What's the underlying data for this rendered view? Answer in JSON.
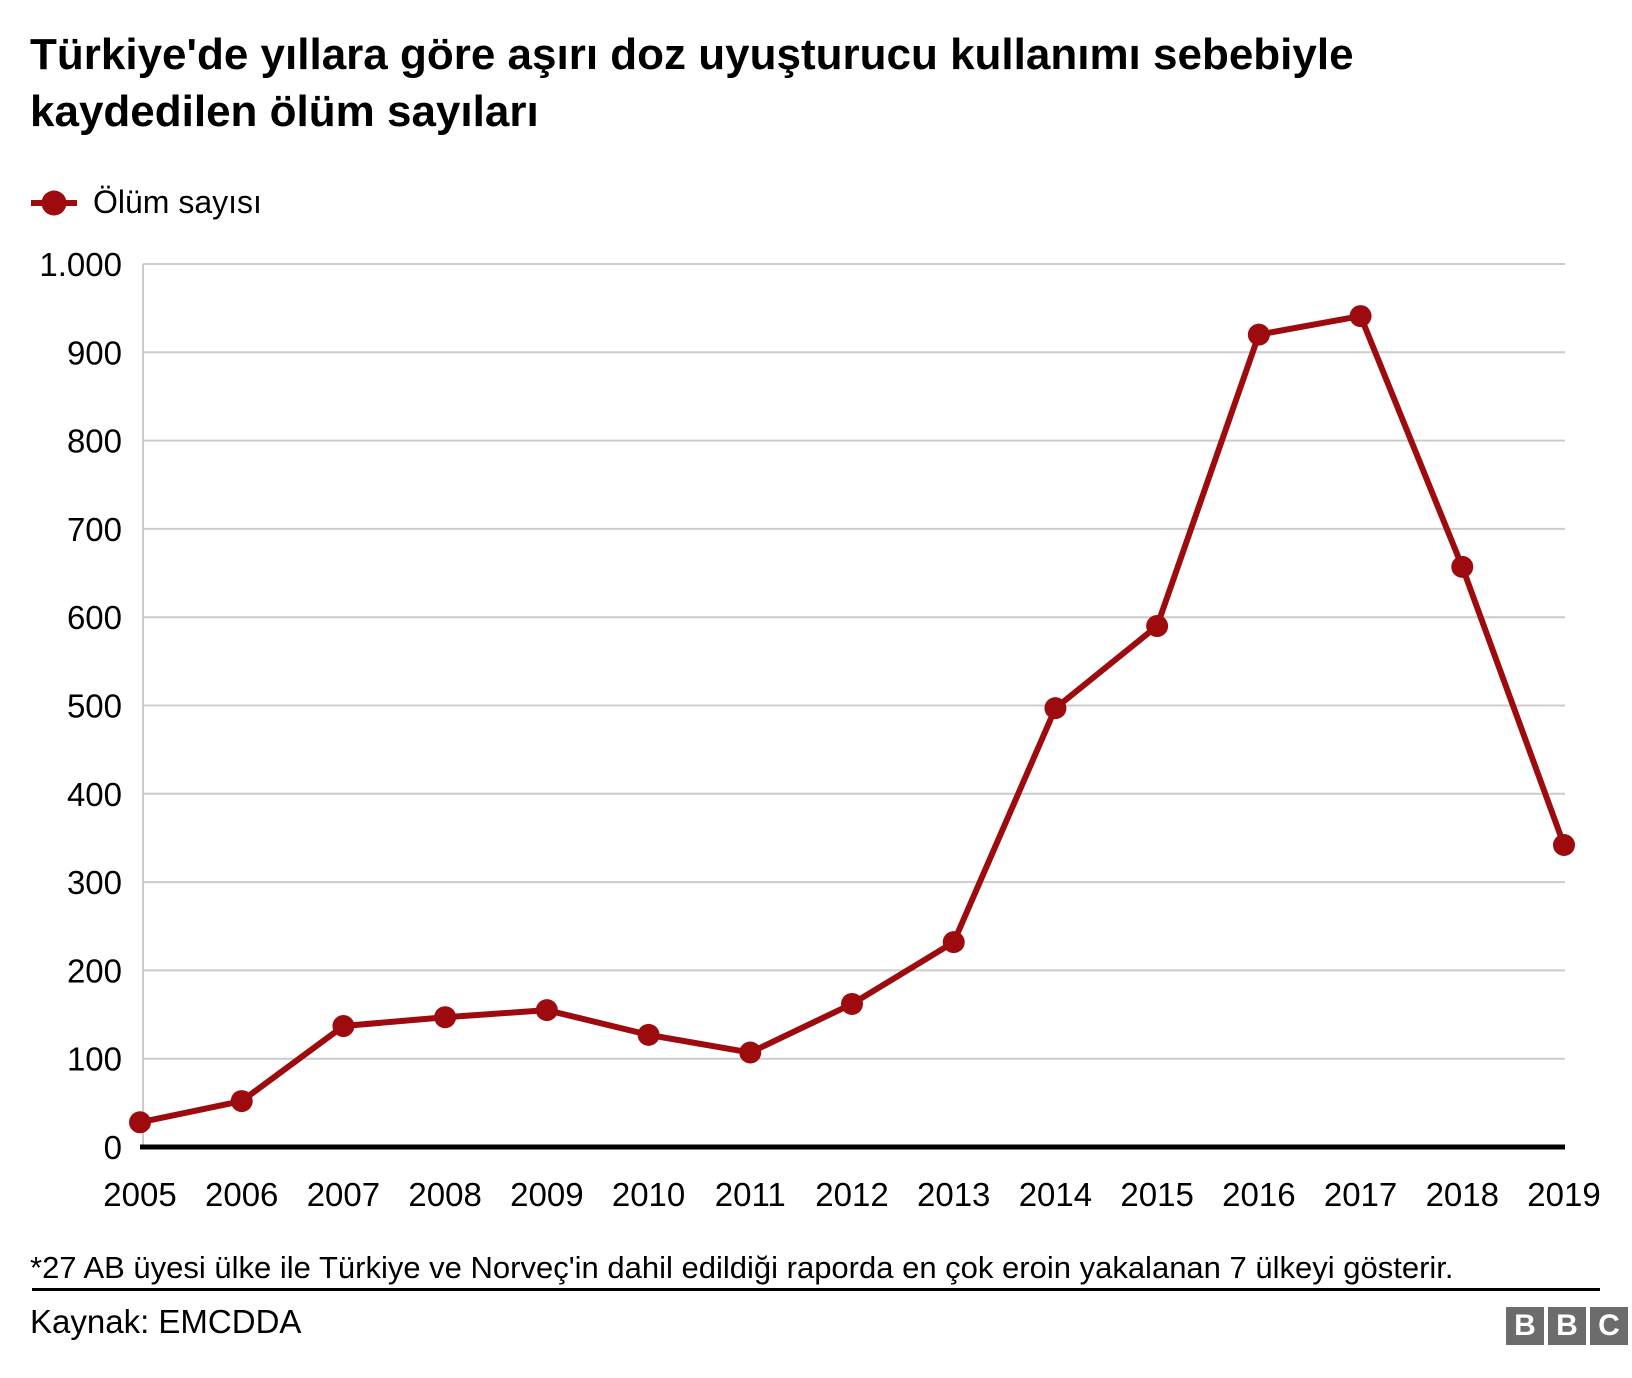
{
  "title": "Türkiye'de yıllara göre aşırı doz uyuşturucu kullanımı sebebiyle kaydedilen ölüm sayıları",
  "legend": {
    "label": "Ölüm sayısı"
  },
  "footnote": "*27 AB üyesi ülke ile Türkiye ve Norveç'in dahil edildiği raporda en çok eroin yakalanan 7 ülkeyi gösterir.",
  "source": "Kaynak: EMCDDA",
  "logo": {
    "letters": [
      "B",
      "B",
      "C"
    ]
  },
  "colors": {
    "line": "#9e0b0e",
    "grid": "#cccccc",
    "axis": "#000000",
    "text": "#000000",
    "logo_gray": "#6c6c6c"
  },
  "chart_data": {
    "type": "line",
    "title": "Türkiye'de yıllara göre aşırı doz uyuşturucu kullanımı sebebiyle kaydedilen ölüm sayıları",
    "categories": [
      "2005",
      "2006",
      "2007",
      "2008",
      "2009",
      "2010",
      "2011",
      "2012",
      "2013",
      "2014",
      "2015",
      "2016",
      "2017",
      "2018",
      "2019"
    ],
    "series": [
      {
        "name": "Ölüm sayısı",
        "values": [
          28,
          52,
          137,
          147,
          155,
          127,
          107,
          162,
          232,
          497,
          590,
          920,
          941,
          657,
          342
        ]
      }
    ],
    "xlabel": "",
    "ylabel": "",
    "ylim": [
      0,
      1000
    ],
    "ytick_interval": 100,
    "ytick_labels": [
      "0",
      "100",
      "200",
      "300",
      "400",
      "500",
      "600",
      "700",
      "800",
      "900",
      "1.000"
    ],
    "grid": "horizontal",
    "legend_position": "top-left",
    "marker": "circle"
  }
}
